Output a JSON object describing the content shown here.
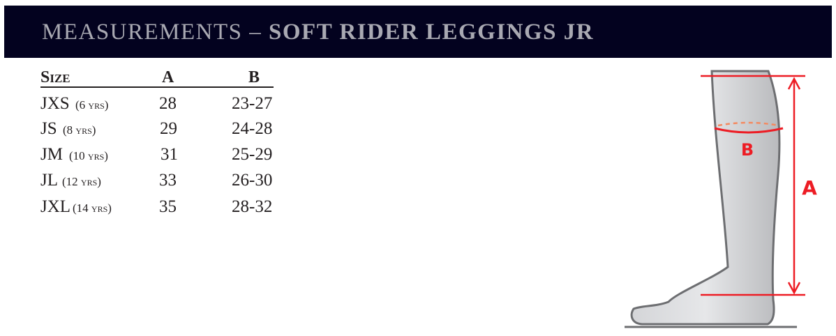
{
  "header": {
    "title_light": "MEASUREMENTS –",
    "title_bold": "SOFT RIDER LEGGINGS JR"
  },
  "table": {
    "columns": [
      "Size",
      "A",
      "B"
    ],
    "rows": [
      {
        "size": "JXS",
        "age": "(6 yrs)",
        "a": "28",
        "b": "23-27"
      },
      {
        "size": "JS",
        "age": "(8 yrs)",
        "a": "29",
        "b": "24-28"
      },
      {
        "size": "JM",
        "age": "(10 yrs)",
        "a": "31",
        "b": "25-29"
      },
      {
        "size": "JL",
        "age": "(12 yrs)",
        "a": "33",
        "b": "26-30"
      },
      {
        "size": "JXL",
        "age": "(14 yrs)",
        "a": "35",
        "b": "28-32"
      }
    ]
  },
  "diagram": {
    "label_a": "A",
    "label_b": "B",
    "accent_color": "#ed1c24",
    "dash_color": "#f4895f",
    "banner_color": "#03021f"
  }
}
